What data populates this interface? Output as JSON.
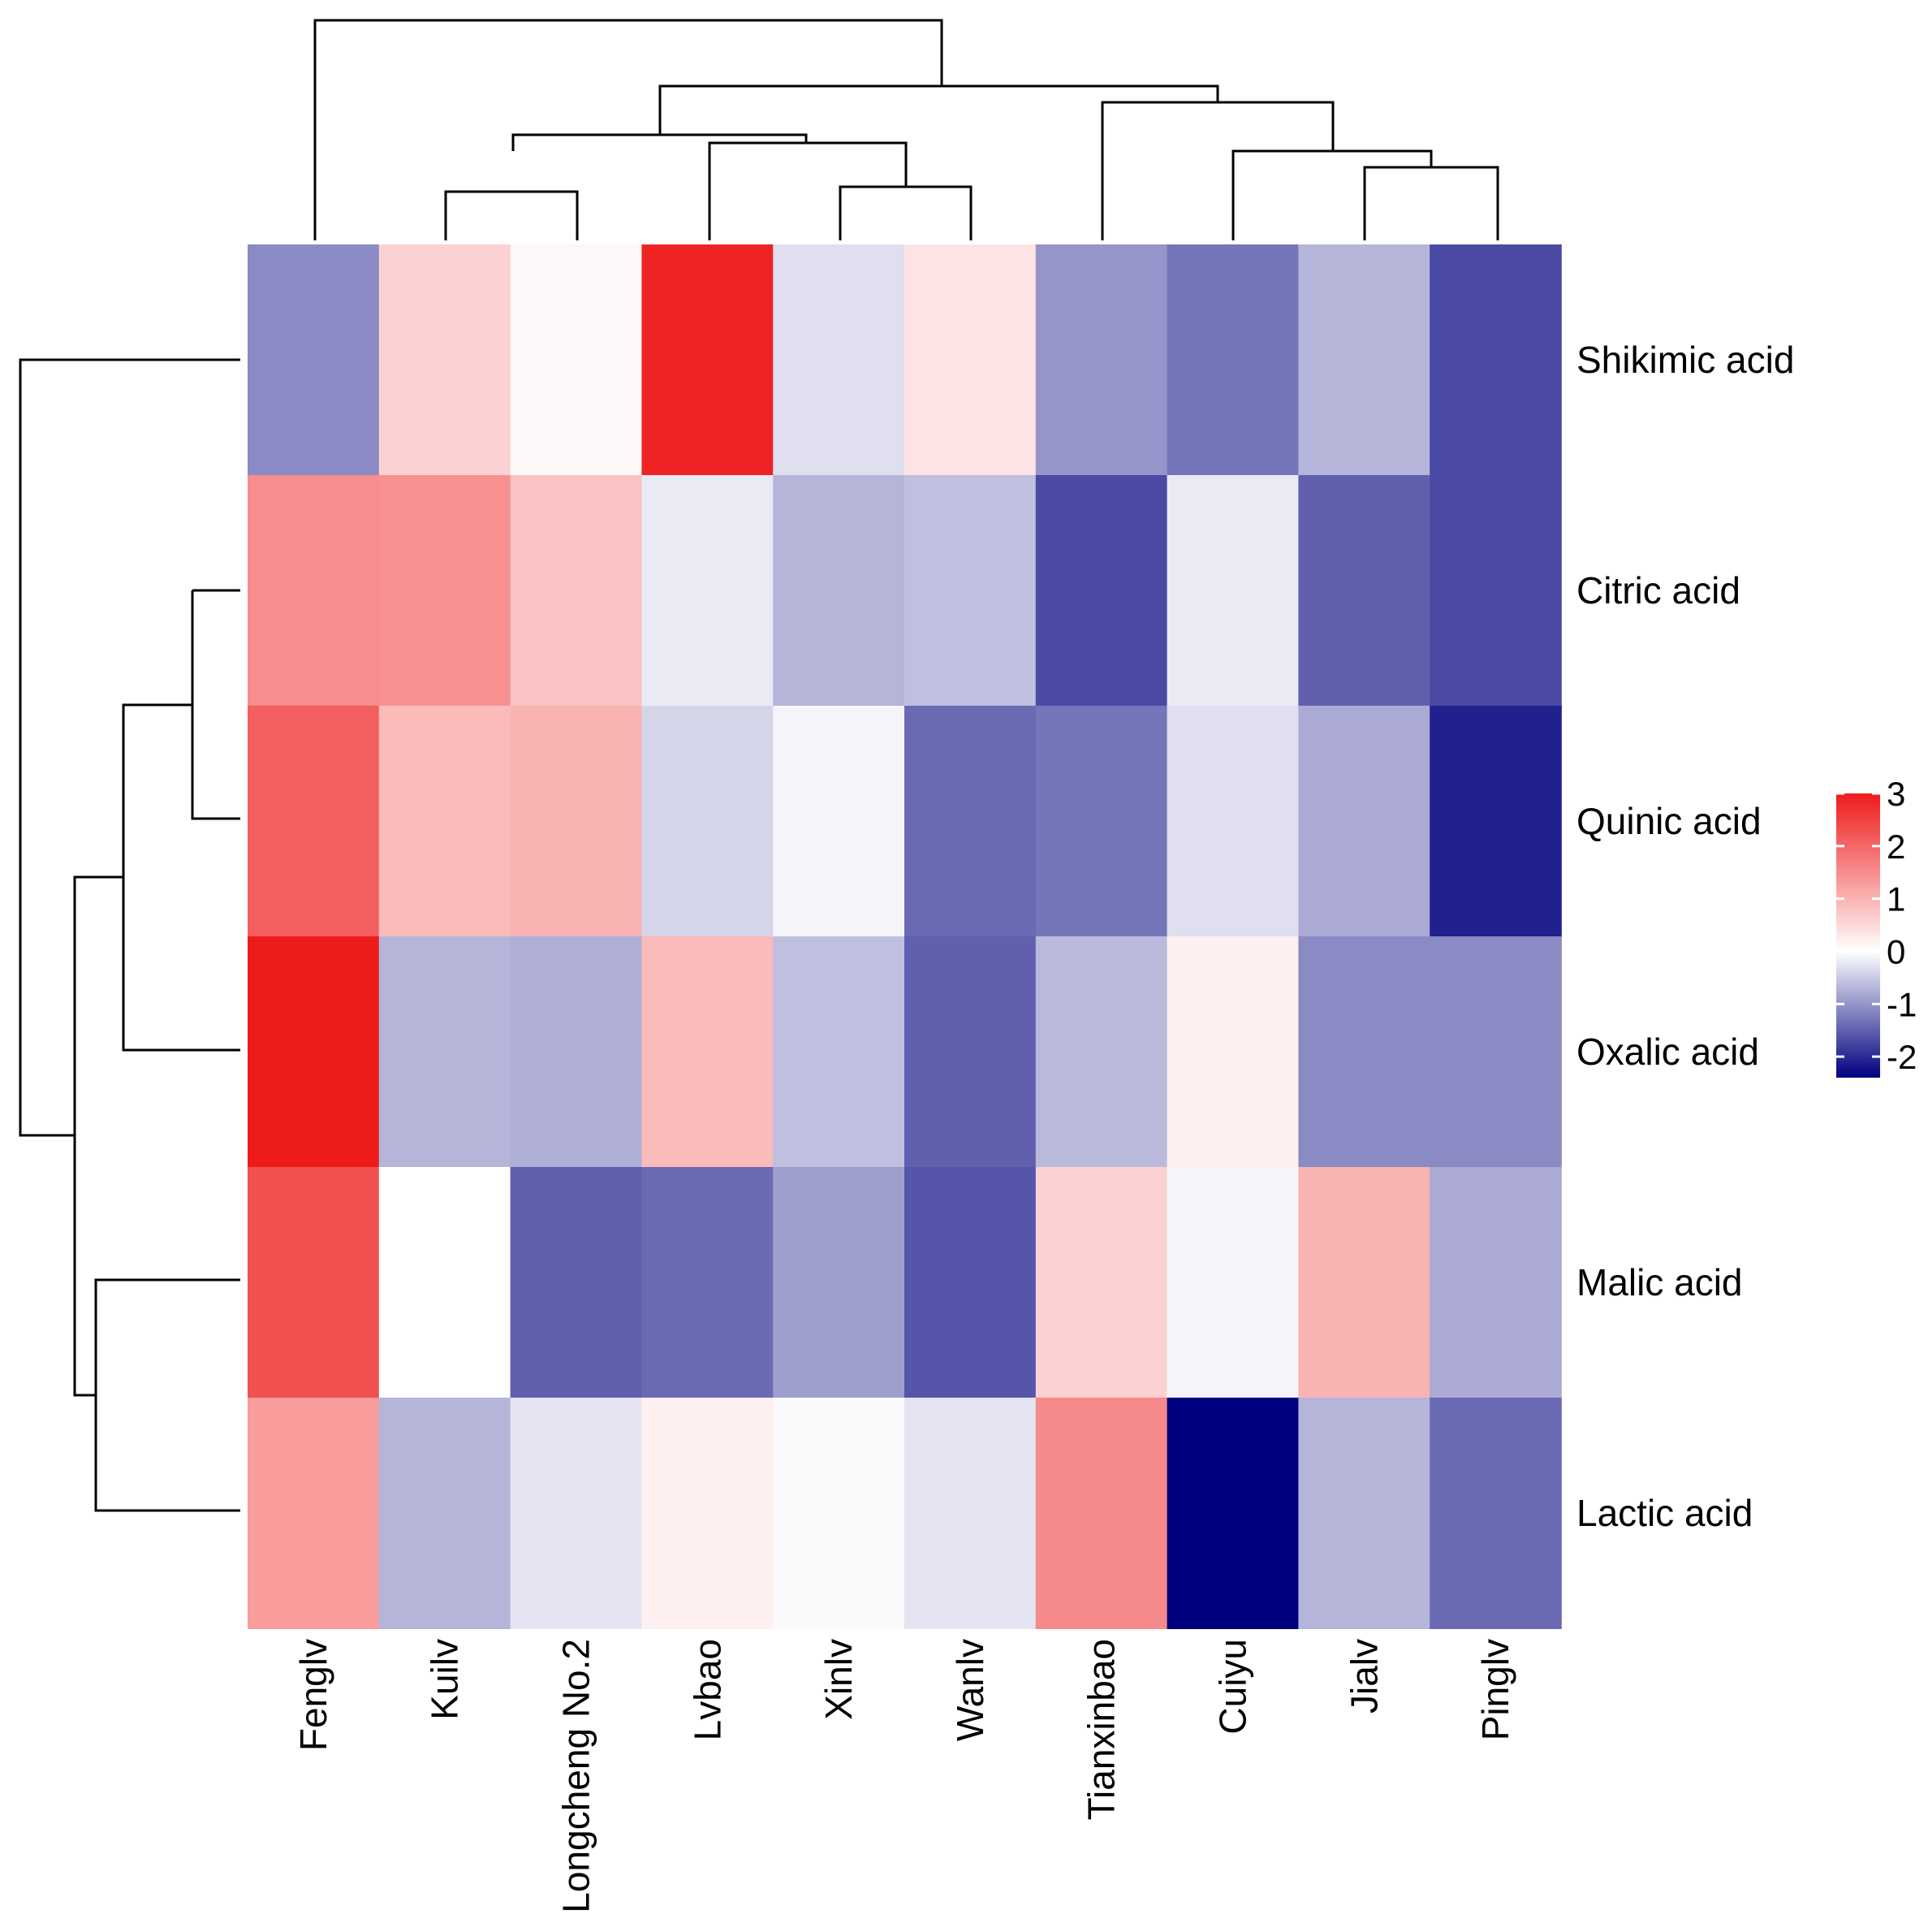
{
  "chart_data": {
    "type": "heatmap",
    "rows": [
      "Shikimic acid",
      "Citric acid",
      "Quinic acid",
      "Oxalic acid",
      "Malic acid",
      "Lactic acid"
    ],
    "columns": [
      "Fenglv",
      "Kuilv",
      "Longcheng No.2",
      "Lvbao",
      "Xinlv",
      "Wanlv",
      "Tianxinbao",
      "Cuiyu",
      "Jialv",
      "Pinglv"
    ],
    "values": [
      [
        -1.1,
        0.6,
        0.1,
        2.9,
        -0.3,
        0.35,
        -1.0,
        -1.3,
        -0.7,
        -1.7
      ],
      [
        1.5,
        1.45,
        0.8,
        -0.2,
        -0.7,
        -0.6,
        -1.7,
        -0.2,
        -1.5,
        -1.7
      ],
      [
        2.1,
        0.9,
        1.0,
        -0.4,
        -0.1,
        -1.4,
        -1.3,
        -0.3,
        -0.8,
        -2.1
      ],
      [
        3.0,
        -0.7,
        -0.75,
        0.9,
        -0.6,
        -1.5,
        -0.65,
        0.2,
        -1.1,
        -1.1
      ],
      [
        2.3,
        0.0,
        -1.5,
        -1.4,
        -0.9,
        -1.6,
        0.6,
        -0.1,
        1.0,
        -0.8
      ],
      [
        1.3,
        -0.7,
        -0.25,
        0.2,
        -0.05,
        -0.25,
        1.55,
        -2.4,
        -0.7,
        -1.4
      ]
    ],
    "legend": {
      "ticks": [
        3,
        2,
        1,
        0,
        -1,
        -2
      ],
      "tick_labels": [
        "3",
        "2",
        "1",
        "0",
        "-1",
        "-2"
      ],
      "range": [
        -2.4,
        3.0
      ],
      "colors": [
        "#00007F",
        "#ffffff",
        "#EE1B1B"
      ]
    },
    "column_dendrogram": true,
    "row_dendrogram": true
  }
}
